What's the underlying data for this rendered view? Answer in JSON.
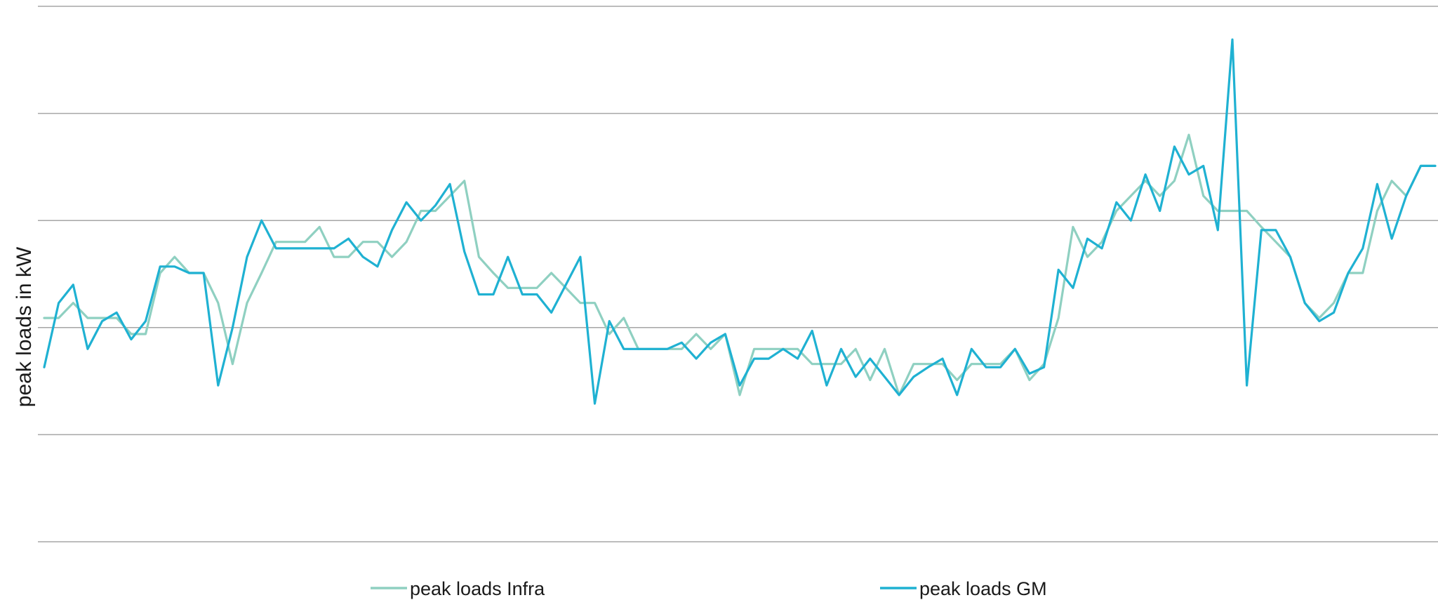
{
  "chart_data": {
    "type": "line",
    "title": "",
    "xlabel": "",
    "ylabel": "peak loads in kW",
    "ylim": [
      0,
      5
    ],
    "grid": true,
    "gridlines": [
      0,
      1,
      2,
      3,
      4,
      5
    ],
    "legend_position": "bottom",
    "x": [
      1,
      2,
      3,
      4,
      5,
      6,
      7,
      8,
      9,
      10,
      11,
      12,
      13,
      14,
      15,
      16,
      17,
      18,
      19,
      20,
      21,
      22,
      23,
      24,
      25,
      26,
      27,
      28,
      29,
      30,
      31,
      32,
      33,
      34,
      35,
      36,
      37,
      38,
      39,
      40,
      41,
      42,
      43,
      44,
      45,
      46,
      47,
      48,
      49,
      50,
      51,
      52,
      53,
      54,
      55,
      56,
      57,
      58,
      59,
      60,
      61,
      62,
      63,
      64,
      65,
      66,
      67,
      68,
      69,
      70,
      71,
      72,
      73,
      74,
      75,
      76,
      77,
      78,
      79,
      80,
      81,
      82,
      83,
      84,
      85,
      86,
      87,
      88,
      89,
      90,
      91,
      92,
      93,
      94,
      95,
      96,
      97
    ],
    "series": [
      {
        "name": "peak loads Infra",
        "color": "#8fd0c1",
        "values": [
          2.09,
          2.09,
          2.23,
          2.09,
          2.09,
          2.09,
          1.94,
          1.94,
          2.51,
          2.66,
          2.51,
          2.51,
          2.23,
          1.66,
          2.23,
          2.51,
          2.8,
          2.8,
          2.8,
          2.94,
          2.66,
          2.66,
          2.8,
          2.8,
          2.66,
          2.8,
          3.09,
          3.09,
          3.23,
          3.37,
          2.66,
          2.51,
          2.37,
          2.37,
          2.37,
          2.51,
          2.37,
          2.23,
          2.23,
          1.94,
          2.09,
          1.8,
          1.8,
          1.8,
          1.8,
          1.94,
          1.8,
          1.94,
          1.37,
          1.8,
          1.8,
          1.8,
          1.8,
          1.66,
          1.66,
          1.66,
          1.8,
          1.51,
          1.8,
          1.37,
          1.66,
          1.66,
          1.66,
          1.51,
          1.66,
          1.66,
          1.66,
          1.8,
          1.51,
          1.66,
          2.09,
          2.94,
          2.66,
          2.8,
          3.09,
          3.23,
          3.37,
          3.23,
          3.37,
          3.8,
          3.23,
          3.09,
          3.09,
          3.09,
          2.94,
          2.8,
          2.66,
          2.23,
          2.09,
          2.23,
          2.51,
          2.51,
          3.09,
          3.37,
          3.23,
          3.51,
          3.51
        ]
      },
      {
        "name": "peak loads GM",
        "color": "#1fb1d2",
        "values": [
          1.63,
          2.23,
          2.4,
          1.8,
          2.06,
          2.14,
          1.89,
          2.06,
          2.57,
          2.57,
          2.51,
          2.51,
          1.46,
          2.0,
          2.66,
          3.0,
          2.74,
          2.74,
          2.74,
          2.74,
          2.74,
          2.83,
          2.66,
          2.57,
          2.91,
          3.17,
          3.0,
          3.14,
          3.34,
          2.71,
          2.31,
          2.31,
          2.66,
          2.31,
          2.31,
          2.14,
          2.4,
          2.66,
          1.29,
          2.06,
          1.8,
          1.8,
          1.8,
          1.8,
          1.86,
          1.71,
          1.86,
          1.94,
          1.46,
          1.71,
          1.71,
          1.8,
          1.71,
          1.97,
          1.46,
          1.8,
          1.54,
          1.71,
          1.54,
          1.37,
          1.54,
          1.63,
          1.71,
          1.37,
          1.8,
          1.63,
          1.63,
          1.8,
          1.57,
          1.63,
          2.54,
          2.37,
          2.83,
          2.74,
          3.17,
          3.0,
          3.43,
          3.09,
          3.69,
          3.43,
          3.51,
          2.91,
          4.69,
          1.46,
          2.91,
          2.91,
          2.66,
          2.23,
          2.06,
          2.14,
          2.51,
          2.74,
          3.34,
          2.83,
          3.23,
          3.51,
          3.51
        ]
      }
    ]
  }
}
